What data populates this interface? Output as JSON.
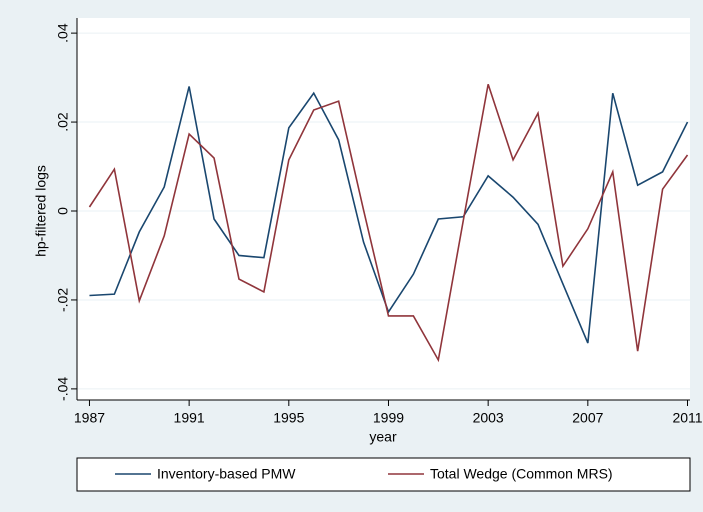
{
  "chart_data": {
    "type": "line",
    "ylabel": "hp-filtered logs",
    "xlabel": "year",
    "x": [
      1987,
      1988,
      1989,
      1990,
      1991,
      1992,
      1993,
      1994,
      1995,
      1996,
      1997,
      1998,
      1999,
      2000,
      2001,
      2002,
      2003,
      2004,
      2005,
      2006,
      2007,
      2008,
      2009,
      2010,
      2011
    ],
    "series": [
      {
        "name": "Inventory-based PMW",
        "color": "#1a476f",
        "values": [
          -0.019,
          -0.0187,
          -0.0047,
          0.0054,
          0.028,
          -0.0018,
          -0.01,
          -0.0105,
          0.0187,
          0.0265,
          0.016,
          -0.007,
          -0.0227,
          -0.0142,
          -0.0018,
          -0.0013,
          0.0079,
          0.0031,
          -0.003,
          -0.0164,
          -0.0297,
          0.0265,
          0.0058,
          0.0088,
          0.02
        ]
      },
      {
        "name": "Total Wedge (Common MRS)",
        "color": "#90353b",
        "values": [
          0.0009,
          0.0094,
          -0.0202,
          -0.0056,
          0.0173,
          0.0119,
          -0.0153,
          -0.0182,
          0.0115,
          0.0227,
          0.0247,
          0.0002,
          -0.0236,
          -0.0236,
          -0.0335,
          -0.0022,
          0.0285,
          0.0115,
          0.022,
          -0.0124,
          -0.004,
          0.0088,
          -0.0315,
          0.0049,
          0.0126
        ]
      }
    ],
    "xlim": [
      1986.5,
      2011.1
    ],
    "xticks": [
      1987,
      1991,
      1995,
      1999,
      2003,
      2007,
      2011
    ],
    "ylim": [
      -0.0425,
      0.0434
    ],
    "yticks": [
      {
        "value": -0.04,
        "label": "-.04"
      },
      {
        "value": -0.02,
        "label": "-.02"
      },
      0,
      {
        "value": 0.02,
        "label": ".02"
      },
      {
        "value": 0.04,
        "label": ".04"
      }
    ],
    "grid": true,
    "legend": "bottom"
  }
}
